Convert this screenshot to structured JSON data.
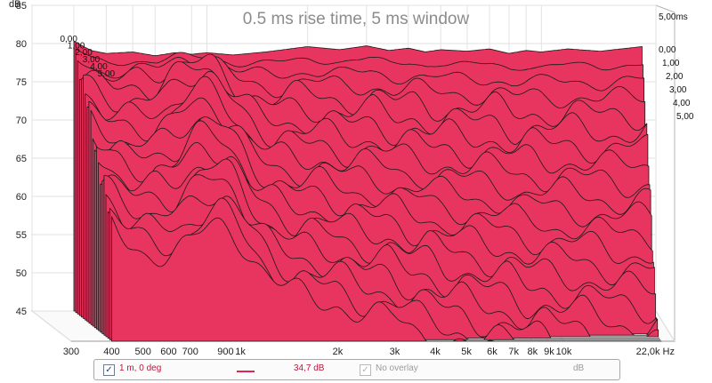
{
  "chart_data": {
    "type": "area",
    "subtype": "waterfall-3d",
    "title": "0.5 ms rise time, 5 ms window",
    "y_unit": "dB",
    "x_unit": "Hz",
    "x_scale": "log",
    "xlim": [
      300,
      22000
    ],
    "ylim": [
      45,
      85
    ],
    "x_ticks": [
      {
        "v": 300,
        "label": "300"
      },
      {
        "v": 400,
        "label": "400"
      },
      {
        "v": 500,
        "label": "500"
      },
      {
        "v": 600,
        "label": "600"
      },
      {
        "v": 700,
        "label": "700"
      },
      {
        "v": 900,
        "label": "900"
      },
      {
        "v": 1000,
        "label": "1k"
      },
      {
        "v": 2000,
        "label": "2k"
      },
      {
        "v": 3000,
        "label": "3k"
      },
      {
        "v": 4000,
        "label": "4k"
      },
      {
        "v": 5000,
        "label": "5k"
      },
      {
        "v": 6000,
        "label": "6k"
      },
      {
        "v": 7000,
        "label": "7k"
      },
      {
        "v": 8000,
        "label": "8k"
      },
      {
        "v": 9000,
        "label": "9k"
      },
      {
        "v": 10000,
        "label": "10k"
      },
      {
        "v": 22000,
        "label": "22,0k Hz"
      }
    ],
    "y_ticks": [
      45,
      50,
      55,
      60,
      65,
      70,
      75,
      80,
      85
    ],
    "time_unit": "ms",
    "time_labels_left": [
      "0,00",
      "1,00",
      "2,00",
      "3,00",
      "4,00",
      "5,00"
    ],
    "time_labels_right": [
      "5,00ms",
      "0,00",
      "1,00",
      "2,00",
      "3,00",
      "4,00",
      "5,00"
    ],
    "slice_times_ms": [
      0,
      0.25,
      0.5,
      0.75,
      1,
      1.25,
      1.5,
      1.75,
      2,
      2.25,
      2.5,
      2.75,
      3,
      3.25,
      3.5,
      3.75,
      4,
      4.25,
      4.5,
      4.75,
      5
    ],
    "series": [
      {
        "name": "1 m, 0 deg",
        "time_ms": 0,
        "x": [
          400,
          450,
          500,
          600,
          700,
          800,
          900,
          1000,
          1200,
          1500,
          2000,
          2500,
          3000,
          3500,
          4000,
          4500,
          5000,
          6000,
          7000,
          8000,
          9000,
          10000,
          12000,
          15000,
          20000
        ],
        "y": [
          80.3,
          79.1,
          78.7,
          78.9,
          78.4,
          78.8,
          78.6,
          78.8,
          78.5,
          78.9,
          79.6,
          79.2,
          79.7,
          79.1,
          79.4,
          78.9,
          79.2,
          79.0,
          79.3,
          78.7,
          79.1,
          78.9,
          79.3,
          79.0,
          79.6
        ]
      }
    ],
    "color": "#e8355f",
    "edge_color": "#1a1a1a"
  },
  "legend": {
    "series_checked": "✓",
    "series_name": "1 m, 0 deg",
    "series_value": "34,7 dB",
    "overlay_checked": "✓",
    "overlay_label": "No overlay",
    "unit": "dB"
  }
}
